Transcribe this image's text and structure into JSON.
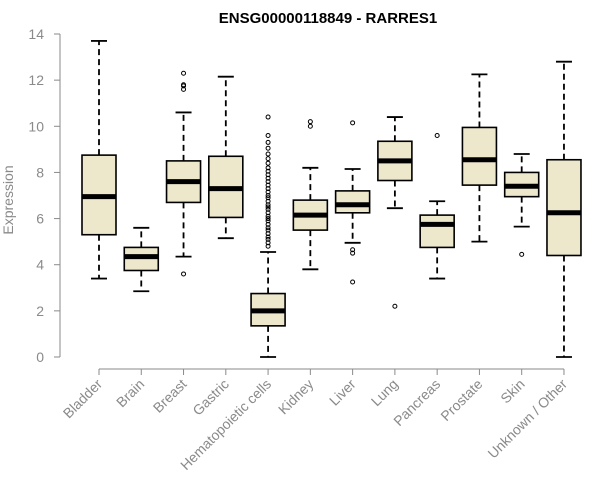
{
  "chart_data": {
    "type": "boxplot",
    "title": "ENSG00000118849 - RARRES1",
    "xlabel": "",
    "ylabel": "Expression",
    "ylim": [
      0,
      14
    ],
    "yticks": [
      0,
      2,
      4,
      6,
      8,
      10,
      12,
      14
    ],
    "colors": {
      "box_fill": "#ede7cc",
      "stroke": "#000000",
      "axis": "#8a8a8a"
    },
    "categories": [
      "Bladder",
      "Brain",
      "Breast",
      "Gastric",
      "Hematopoietic cells",
      "Kidney",
      "Liver",
      "Lung",
      "Pancreas",
      "Prostate",
      "Skin",
      "Unknown / Other"
    ],
    "boxes": [
      {
        "category": "Bladder",
        "min": 3.4,
        "q1": 5.3,
        "median": 6.95,
        "q3": 8.75,
        "max": 13.7,
        "outliers": []
      },
      {
        "category": "Brain",
        "min": 2.85,
        "q1": 3.75,
        "median": 4.35,
        "q3": 4.75,
        "max": 5.6,
        "outliers": []
      },
      {
        "category": "Breast",
        "min": 4.35,
        "q1": 6.7,
        "median": 7.6,
        "q3": 8.5,
        "max": 10.6,
        "outliers": [
          3.6,
          11.6,
          11.75,
          11.8,
          12.3
        ]
      },
      {
        "category": "Gastric",
        "min": 5.15,
        "q1": 6.05,
        "median": 7.3,
        "q3": 8.7,
        "max": 12.15,
        "outliers": []
      },
      {
        "category": "Hematopoietic cells",
        "min": 0.0,
        "q1": 1.35,
        "median": 2.0,
        "q3": 2.75,
        "max": 4.55,
        "outliers": [
          4.8,
          4.95,
          5.1,
          5.2,
          5.35,
          5.5,
          5.6,
          5.75,
          5.9,
          6.0,
          6.1,
          6.25,
          6.4,
          6.5,
          6.6,
          6.75,
          6.9,
          7.0,
          7.15,
          7.3,
          7.45,
          7.6,
          7.75,
          7.9,
          8.05,
          8.2,
          8.4,
          8.6,
          8.8,
          9.05,
          9.3,
          9.6,
          10.4
        ]
      },
      {
        "category": "Kidney",
        "min": 3.8,
        "q1": 5.5,
        "median": 6.15,
        "q3": 6.8,
        "max": 8.2,
        "outliers": [
          10.0,
          10.2
        ]
      },
      {
        "category": "Liver",
        "min": 4.95,
        "q1": 6.25,
        "median": 6.6,
        "q3": 7.2,
        "max": 8.15,
        "outliers": [
          3.25,
          4.5,
          4.65,
          10.15
        ]
      },
      {
        "category": "Lung",
        "min": 6.45,
        "q1": 7.65,
        "median": 8.5,
        "q3": 9.35,
        "max": 10.4,
        "outliers": [
          2.2
        ]
      },
      {
        "category": "Pancreas",
        "min": 3.4,
        "q1": 4.75,
        "median": 5.75,
        "q3": 6.15,
        "max": 6.75,
        "outliers": [
          9.6
        ]
      },
      {
        "category": "Prostate",
        "min": 5.0,
        "q1": 7.45,
        "median": 8.55,
        "q3": 9.95,
        "max": 12.25,
        "outliers": []
      },
      {
        "category": "Skin",
        "min": 5.65,
        "q1": 6.95,
        "median": 7.4,
        "q3": 8.0,
        "max": 8.8,
        "outliers": [
          4.45
        ]
      },
      {
        "category": "Unknown / Other",
        "min": 0.0,
        "q1": 4.4,
        "median": 6.25,
        "q3": 8.55,
        "max": 12.8,
        "outliers": []
      }
    ]
  }
}
